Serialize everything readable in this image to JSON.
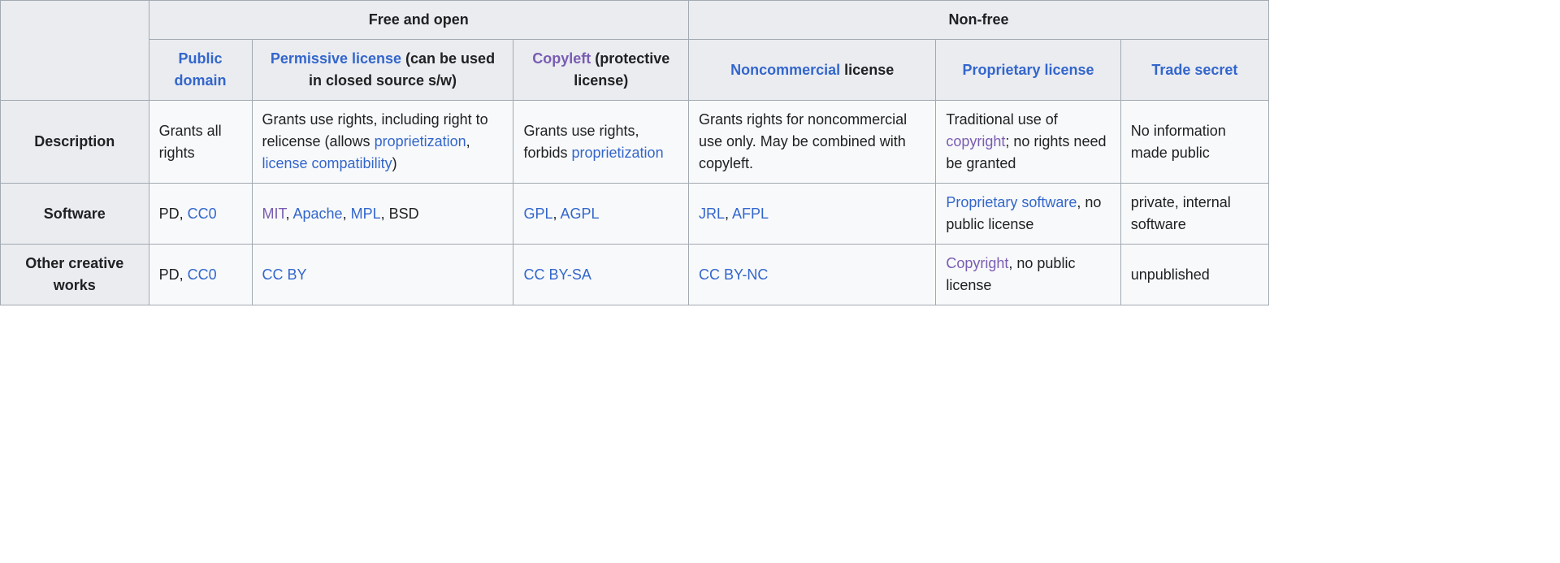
{
  "colors": {
    "header_bg": "#eaecf0",
    "cell_bg": "#f8f9fa",
    "border": "#a2a9b1",
    "link": "#3366cc",
    "visited_link": "#795cb2",
    "text": "#202122"
  },
  "group_headers": {
    "free": "Free and open",
    "nonfree": "Non-free"
  },
  "col_headers": {
    "public_domain": {
      "link": "Public domain"
    },
    "permissive": {
      "link": "Permissive license",
      "suffix": " (can be used in closed source s/w)"
    },
    "copyleft": {
      "visited_link": "Copyleft",
      "suffix": " (protective license)"
    },
    "noncommercial": {
      "link": "Noncommercial",
      "suffix": " license"
    },
    "proprietary": {
      "link": "Proprietary license"
    },
    "trade_secret": {
      "link": "Trade secret"
    }
  },
  "row_headers": {
    "description": "Description",
    "software": "Software",
    "other_works": "Other creative works"
  },
  "cells": {
    "desc_pd": {
      "t0": "Grants all rights"
    },
    "desc_perm": {
      "t0": "Grants use rights, including right to relicense (allows ",
      "l1": "proprietization",
      "t1": ", ",
      "l2": "license compatibility",
      "t2": ")"
    },
    "desc_copy": {
      "t0": "Grants use rights, forbids ",
      "l1": "proprietization"
    },
    "desc_nc": {
      "t0": "Grants rights for noncommercial use only. May be combined with copyleft."
    },
    "desc_prop": {
      "t0": "Traditional use of ",
      "l1": "copyright",
      "t1": "; no rights need be granted"
    },
    "desc_ts": {
      "t0": "No information made public"
    },
    "soft_pd": {
      "t0": "PD, ",
      "l1": "CC0"
    },
    "soft_perm": {
      "l0": "MIT",
      "t0": ", ",
      "l1": "Apache",
      "t1": ", ",
      "l2": "MPL",
      "t2": ", BSD"
    },
    "soft_copy": {
      "l0": "GPL",
      "t0": ", ",
      "l1": "AGPL"
    },
    "soft_nc": {
      "l0": "JRL",
      "t0": ", ",
      "l1": "AFPL"
    },
    "soft_prop": {
      "l0": "Proprietary software",
      "t0": ", no public license"
    },
    "soft_ts": {
      "t0": "private, internal software"
    },
    "other_pd": {
      "t0": "PD, ",
      "l1": "CC0"
    },
    "other_perm": {
      "l0": "CC BY"
    },
    "other_copy": {
      "l0": "CC BY-SA"
    },
    "other_nc": {
      "l0": "CC BY-NC"
    },
    "other_prop": {
      "l0": "Copyright",
      "t0": ", no public license"
    },
    "other_ts": {
      "t0": "unpublished"
    }
  }
}
